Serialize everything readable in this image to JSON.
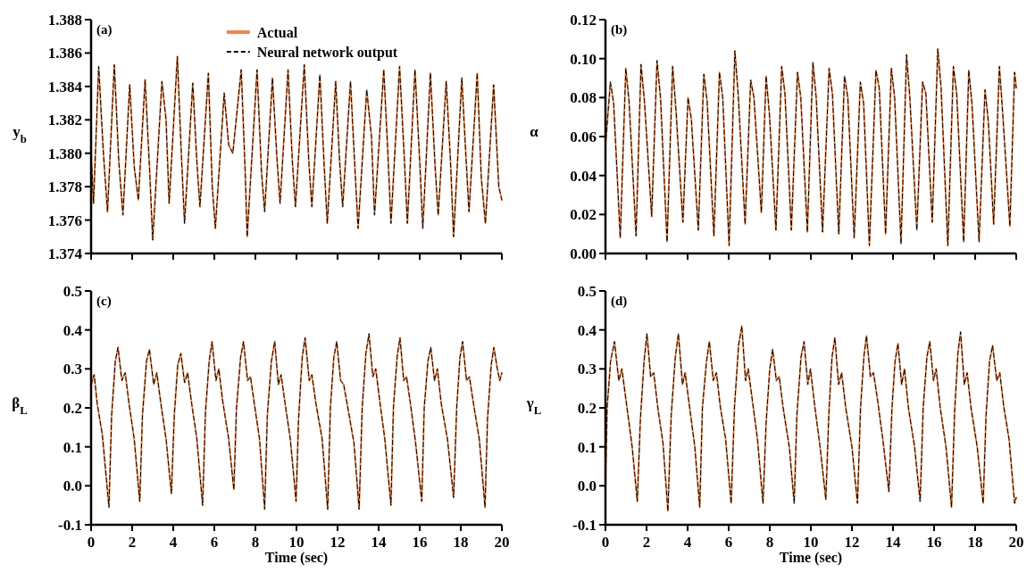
{
  "chart_data": [
    {
      "type": "line",
      "title": "(a)",
      "ylabel": "y$_{b}$",
      "legend": "top",
      "tick_labels": "y",
      "xlim": [
        0,
        20
      ],
      "xticks": [
        0,
        2,
        4,
        6,
        8,
        10,
        12,
        14,
        16,
        18,
        20
      ],
      "ylim": [
        1.374,
        1.388
      ],
      "yticks": [
        {
          "value": 1.374,
          "label": "1.374"
        },
        {
          "value": 1.376,
          "label": "1.376"
        },
        {
          "value": 1.378,
          "label": "1.378"
        },
        {
          "value": 1.38,
          "label": "1.380"
        },
        {
          "value": 1.382,
          "label": "1.382"
        },
        {
          "value": 1.384,
          "label": "1.384"
        },
        {
          "value": 1.386,
          "label": "1.386"
        },
        {
          "value": 1.388,
          "label": "1.388"
        }
      ],
      "x": [
        0,
        0.12,
        0.37,
        0.6,
        0.8,
        1.13,
        1.35,
        1.55,
        1.88,
        2.1,
        2.3,
        2.63,
        2.85,
        3.0,
        3.45,
        3.65,
        3.8,
        4.2,
        4.4,
        4.55,
        4.95,
        5.15,
        5.3,
        5.71,
        5.9,
        6.05,
        6.48,
        6.7,
        6.9,
        7.31,
        7.5,
        7.6,
        8.08,
        8.3,
        8.45,
        8.83,
        9.05,
        9.2,
        9.59,
        9.8,
        9.95,
        10.38,
        10.6,
        10.75,
        11.14,
        11.35,
        11.5,
        11.91,
        12.1,
        12.25,
        12.63,
        12.85,
        13.0,
        13.42,
        13.65,
        13.8,
        14.25,
        14.45,
        14.6,
        15.02,
        15.25,
        15.4,
        15.77,
        16.0,
        16.15,
        16.52,
        16.75,
        16.9,
        17.29,
        17.5,
        17.65,
        18.05,
        18.25,
        18.4,
        18.8,
        19.0,
        19.2,
        19.6,
        19.85,
        20
      ],
      "series": [
        {
          "name": "Actual",
          "color": "#f0874a",
          "line_style": "solid",
          "values": [
            1.38,
            1.377,
            1.3852,
            1.38,
            1.3765,
            1.3853,
            1.3795,
            1.3763,
            1.3841,
            1.3792,
            1.3772,
            1.3844,
            1.379,
            1.3748,
            1.3843,
            1.382,
            1.377,
            1.3858,
            1.3798,
            1.3758,
            1.3842,
            1.3795,
            1.3768,
            1.3848,
            1.378,
            1.3755,
            1.3836,
            1.3805,
            1.38,
            1.385,
            1.379,
            1.375,
            1.385,
            1.3788,
            1.3765,
            1.3845,
            1.3797,
            1.377,
            1.385,
            1.3795,
            1.3768,
            1.3853,
            1.3795,
            1.3768,
            1.3847,
            1.3792,
            1.3758,
            1.3843,
            1.3795,
            1.3768,
            1.3843,
            1.379,
            1.3755,
            1.3838,
            1.381,
            1.3763,
            1.385,
            1.38,
            1.3758,
            1.3852,
            1.3797,
            1.3758,
            1.385,
            1.3795,
            1.3755,
            1.3848,
            1.3792,
            1.3763,
            1.3843,
            1.3795,
            1.375,
            1.3845,
            1.3798,
            1.3765,
            1.3848,
            1.3785,
            1.3758,
            1.3841,
            1.378,
            1.3772
          ]
        },
        {
          "name": "Neural network output",
          "color": "#000000",
          "line_style": "dashed",
          "values": [
            1.38,
            1.377,
            1.3852,
            1.38,
            1.3765,
            1.3853,
            1.3795,
            1.3763,
            1.3841,
            1.3792,
            1.3772,
            1.3844,
            1.379,
            1.3748,
            1.3843,
            1.382,
            1.377,
            1.3858,
            1.3798,
            1.3758,
            1.3842,
            1.3795,
            1.3768,
            1.3848,
            1.378,
            1.3755,
            1.3836,
            1.3805,
            1.38,
            1.385,
            1.379,
            1.375,
            1.385,
            1.3788,
            1.3765,
            1.3845,
            1.3797,
            1.377,
            1.385,
            1.3795,
            1.3768,
            1.3853,
            1.3795,
            1.3768,
            1.3847,
            1.3792,
            1.3758,
            1.3843,
            1.3795,
            1.3768,
            1.3843,
            1.379,
            1.3755,
            1.3838,
            1.381,
            1.3763,
            1.385,
            1.38,
            1.3758,
            1.3852,
            1.3797,
            1.3758,
            1.385,
            1.3795,
            1.3755,
            1.3848,
            1.3792,
            1.3763,
            1.3843,
            1.3795,
            1.375,
            1.3845,
            1.3798,
            1.3765,
            1.3848,
            1.3785,
            1.3758,
            1.3841,
            1.378,
            1.3772
          ]
        }
      ]
    },
    {
      "type": "line",
      "title": "(b)",
      "ylabel": "α",
      "tick_labels": "y",
      "xlim": [
        0,
        20
      ],
      "xticks": [
        0,
        2,
        4,
        6,
        8,
        10,
        12,
        14,
        16,
        18,
        20
      ],
      "ylim": [
        0,
        0.12
      ],
      "yticks": [
        {
          "value": 0,
          "label": "0.00"
        },
        0.02,
        0.04,
        0.06,
        0.08,
        {
          "value": 0.1,
          "label": "0.10"
        },
        0.12
      ],
      "x": [
        0,
        0.24,
        0.4,
        0.72,
        0.99,
        1.15,
        1.49,
        1.73,
        1.9,
        2.25,
        2.51,
        2.68,
        3.0,
        3.27,
        3.43,
        3.77,
        4.02,
        4.18,
        4.52,
        4.79,
        4.95,
        5.28,
        5.55,
        5.71,
        6.02,
        6.3,
        6.46,
        6.8,
        7.07,
        7.23,
        7.59,
        7.82,
        7.98,
        8.3,
        8.58,
        8.74,
        9.05,
        9.35,
        9.51,
        9.83,
        10.1,
        10.26,
        10.57,
        10.89,
        11.05,
        11.36,
        11.64,
        11.8,
        12.11,
        12.41,
        12.57,
        12.85,
        13.17,
        13.33,
        13.64,
        13.92,
        14.08,
        14.39,
        14.66,
        14.82,
        15.16,
        15.44,
        15.6,
        15.91,
        16.18,
        16.34,
        16.67,
        16.94,
        17.1,
        17.44,
        17.69,
        17.85,
        18.19,
        18.48,
        18.64,
        18.9,
        19.18,
        19.34,
        19.69,
        19.92,
        20
      ],
      "series": [
        {
          "color": "#f0874a",
          "line_style": "solid",
          "values": [
            0.055,
            0.088,
            0.077,
            0.008,
            0.095,
            0.078,
            0.009,
            0.097,
            0.078,
            0.019,
            0.099,
            0.08,
            0.006,
            0.096,
            0.074,
            0.016,
            0.08,
            0.069,
            0.012,
            0.092,
            0.078,
            0.009,
            0.093,
            0.08,
            0.004,
            0.104,
            0.082,
            0.015,
            0.089,
            0.08,
            0.021,
            0.091,
            0.072,
            0.012,
            0.096,
            0.082,
            0.012,
            0.093,
            0.08,
            0.011,
            0.098,
            0.08,
            0.011,
            0.095,
            0.082,
            0.01,
            0.091,
            0.08,
            0.008,
            0.088,
            0.077,
            0.004,
            0.094,
            0.085,
            0.01,
            0.095,
            0.08,
            0.005,
            0.102,
            0.08,
            0.012,
            0.088,
            0.082,
            0.016,
            0.105,
            0.085,
            0.004,
            0.096,
            0.082,
            0.006,
            0.094,
            0.076,
            0.006,
            0.084,
            0.068,
            0.015,
            0.096,
            0.072,
            0.014,
            0.093,
            0.085
          ]
        },
        {
          "color": "#000000",
          "line_style": "dashed",
          "values": [
            0.055,
            0.088,
            0.077,
            0.008,
            0.095,
            0.078,
            0.009,
            0.097,
            0.078,
            0.019,
            0.099,
            0.08,
            0.006,
            0.096,
            0.074,
            0.016,
            0.08,
            0.069,
            0.012,
            0.092,
            0.078,
            0.009,
            0.093,
            0.08,
            0.004,
            0.104,
            0.082,
            0.015,
            0.089,
            0.08,
            0.021,
            0.091,
            0.072,
            0.012,
            0.096,
            0.082,
            0.012,
            0.093,
            0.08,
            0.011,
            0.098,
            0.08,
            0.011,
            0.095,
            0.082,
            0.01,
            0.091,
            0.08,
            0.008,
            0.088,
            0.077,
            0.004,
            0.094,
            0.085,
            0.01,
            0.095,
            0.08,
            0.005,
            0.102,
            0.08,
            0.012,
            0.088,
            0.082,
            0.016,
            0.105,
            0.085,
            0.004,
            0.096,
            0.082,
            0.006,
            0.094,
            0.076,
            0.006,
            0.084,
            0.068,
            0.015,
            0.096,
            0.072,
            0.014,
            0.093,
            0.085
          ]
        }
      ]
    },
    {
      "type": "line",
      "title": "(c)",
      "xlabel": "Time (sec)",
      "ylabel": "β$_{L}$",
      "xlim": [
        0,
        20
      ],
      "xticks": [
        0,
        2,
        4,
        6,
        8,
        10,
        12,
        14,
        16,
        18,
        20
      ],
      "ylim": [
        -0.1,
        0.5
      ],
      "yticks": [
        -0.1,
        {
          "value": 0,
          "label": "0.0"
        },
        0.1,
        0.2,
        0.3,
        0.4,
        0.5
      ],
      "x": [
        0,
        0.15,
        0.3,
        0.55,
        0.87,
        1.0,
        1.18,
        1.31,
        1.5,
        1.66,
        1.85,
        2.1,
        2.37,
        2.5,
        2.7,
        2.84,
        3.05,
        3.2,
        3.4,
        3.65,
        3.91,
        4.05,
        4.22,
        4.37,
        4.55,
        4.7,
        4.9,
        5.15,
        5.43,
        5.57,
        5.75,
        5.89,
        6.08,
        6.22,
        6.4,
        6.7,
        6.95,
        7.08,
        7.28,
        7.42,
        7.62,
        7.76,
        7.95,
        8.2,
        8.45,
        8.58,
        8.78,
        8.94,
        9.12,
        9.25,
        9.45,
        9.7,
        9.98,
        10.1,
        10.28,
        10.42,
        10.62,
        10.75,
        10.95,
        11.25,
        11.52,
        11.65,
        11.82,
        11.96,
        12.15,
        12.3,
        12.5,
        12.8,
        13.05,
        13.2,
        13.38,
        13.53,
        13.72,
        13.86,
        14.05,
        14.3,
        14.6,
        14.72,
        14.9,
        15.04,
        15.22,
        15.36,
        15.55,
        15.8,
        16.1,
        16.22,
        16.4,
        16.54,
        16.72,
        16.86,
        17.05,
        17.35,
        17.65,
        17.8,
        17.96,
        18.09,
        18.28,
        18.42,
        18.62,
        18.9,
        19.18,
        19.3,
        19.48,
        19.61,
        19.78,
        19.9,
        20
      ],
      "series": [
        {
          "color": "#f0874a",
          "line_style": "solid",
          "values": [
            0.26,
            0.285,
            0.21,
            0.13,
            -0.055,
            0.18,
            0.32,
            0.355,
            0.27,
            0.29,
            0.21,
            0.12,
            -0.04,
            0.18,
            0.32,
            0.35,
            0.26,
            0.29,
            0.21,
            0.12,
            -0.02,
            0.18,
            0.31,
            0.34,
            0.265,
            0.29,
            0.21,
            0.12,
            -0.05,
            0.19,
            0.32,
            0.37,
            0.27,
            0.3,
            0.22,
            0.12,
            -0.01,
            0.2,
            0.33,
            0.37,
            0.27,
            0.28,
            0.21,
            0.12,
            -0.06,
            0.18,
            0.32,
            0.37,
            0.26,
            0.285,
            0.21,
            0.12,
            -0.04,
            0.17,
            0.33,
            0.38,
            0.27,
            0.285,
            0.21,
            0.12,
            -0.06,
            0.2,
            0.33,
            0.37,
            0.27,
            0.26,
            0.2,
            0.11,
            -0.06,
            0.2,
            0.34,
            0.39,
            0.28,
            0.3,
            0.22,
            0.12,
            -0.05,
            0.2,
            0.33,
            0.38,
            0.27,
            0.28,
            0.21,
            0.11,
            -0.04,
            0.2,
            0.32,
            0.355,
            0.27,
            0.3,
            0.21,
            0.12,
            -0.03,
            0.2,
            0.33,
            0.37,
            0.27,
            0.28,
            0.21,
            0.12,
            -0.055,
            0.17,
            0.31,
            0.355,
            0.3,
            0.27,
            0.29
          ]
        },
        {
          "color": "#000000",
          "line_style": "dashed",
          "values": [
            0.26,
            0.285,
            0.21,
            0.13,
            -0.055,
            0.18,
            0.32,
            0.355,
            0.27,
            0.29,
            0.21,
            0.12,
            -0.04,
            0.18,
            0.32,
            0.35,
            0.26,
            0.29,
            0.21,
            0.12,
            -0.02,
            0.18,
            0.31,
            0.34,
            0.265,
            0.29,
            0.21,
            0.12,
            -0.05,
            0.19,
            0.32,
            0.37,
            0.27,
            0.3,
            0.22,
            0.12,
            -0.01,
            0.2,
            0.33,
            0.37,
            0.27,
            0.28,
            0.21,
            0.12,
            -0.06,
            0.18,
            0.32,
            0.37,
            0.26,
            0.285,
            0.21,
            0.12,
            -0.04,
            0.17,
            0.33,
            0.38,
            0.27,
            0.285,
            0.21,
            0.12,
            -0.06,
            0.2,
            0.33,
            0.37,
            0.27,
            0.26,
            0.2,
            0.11,
            -0.06,
            0.2,
            0.34,
            0.39,
            0.28,
            0.3,
            0.22,
            0.12,
            -0.05,
            0.2,
            0.33,
            0.38,
            0.27,
            0.28,
            0.21,
            0.11,
            -0.04,
            0.2,
            0.32,
            0.355,
            0.27,
            0.3,
            0.21,
            0.12,
            -0.03,
            0.2,
            0.33,
            0.37,
            0.27,
            0.28,
            0.21,
            0.12,
            -0.055,
            0.17,
            0.31,
            0.355,
            0.3,
            0.27,
            0.29
          ]
        }
      ]
    },
    {
      "type": "line",
      "title": "(d)",
      "xlabel": "Time (sec)",
      "ylabel": "γ$_{L}$",
      "xlim": [
        0,
        20
      ],
      "xticks": [
        0,
        2,
        4,
        6,
        8,
        10,
        12,
        14,
        16,
        18,
        20
      ],
      "ylim": [
        -0.1,
        0.5
      ],
      "yticks": [
        -0.1,
        {
          "value": 0,
          "label": "0.0"
        },
        0.1,
        0.2,
        0.3,
        0.4,
        0.5
      ],
      "x": [
        0,
        0.08,
        0.25,
        0.44,
        0.65,
        0.8,
        1.0,
        1.3,
        1.55,
        1.7,
        1.88,
        2.02,
        2.2,
        2.35,
        2.55,
        2.8,
        3.04,
        3.2,
        3.4,
        3.55,
        3.75,
        3.88,
        4.1,
        4.35,
        4.59,
        4.72,
        4.92,
        5.06,
        5.25,
        5.4,
        5.6,
        5.85,
        6.12,
        6.28,
        6.48,
        6.64,
        6.82,
        6.95,
        7.15,
        7.4,
        7.67,
        7.82,
        8.0,
        8.14,
        8.32,
        8.46,
        8.65,
        8.95,
        9.19,
        9.32,
        9.52,
        9.67,
        9.85,
        9.98,
        10.2,
        10.45,
        10.73,
        10.88,
        11.03,
        11.17,
        11.35,
        11.5,
        11.7,
        12.0,
        12.27,
        12.42,
        12.58,
        12.71,
        12.9,
        13.05,
        13.25,
        13.5,
        13.8,
        13.95,
        14.1,
        14.24,
        14.42,
        14.56,
        14.75,
        15.05,
        15.32,
        15.47,
        15.65,
        15.79,
        15.97,
        16.1,
        16.3,
        16.58,
        16.85,
        17.0,
        17.16,
        17.29,
        17.47,
        17.61,
        17.8,
        18.1,
        18.39,
        18.53,
        18.7,
        18.85,
        19.05,
        19.2,
        19.4,
        19.65,
        19.92,
        20
      ],
      "series": [
        {
          "color": "#f0874a",
          "line_style": "solid",
          "values": [
            0,
            0.2,
            0.32,
            0.37,
            0.27,
            0.3,
            0.22,
            0.1,
            -0.04,
            0.17,
            0.32,
            0.39,
            0.28,
            0.29,
            0.2,
            0.11,
            -0.065,
            0.18,
            0.33,
            0.39,
            0.26,
            0.29,
            0.2,
            0.1,
            -0.055,
            0.2,
            0.32,
            0.37,
            0.27,
            0.29,
            0.2,
            0.12,
            -0.045,
            0.2,
            0.36,
            0.41,
            0.27,
            0.3,
            0.22,
            0.12,
            -0.045,
            0.16,
            0.3,
            0.35,
            0.27,
            0.28,
            0.2,
            0.1,
            -0.045,
            0.18,
            0.33,
            0.37,
            0.26,
            0.3,
            0.2,
            0.1,
            -0.035,
            0.19,
            0.33,
            0.38,
            0.26,
            0.29,
            0.2,
            0.1,
            -0.045,
            0.2,
            0.33,
            0.385,
            0.28,
            0.29,
            0.22,
            0.12,
            -0.015,
            0.2,
            0.32,
            0.365,
            0.26,
            0.3,
            0.2,
            0.1,
            -0.04,
            0.2,
            0.33,
            0.37,
            0.27,
            0.3,
            0.2,
            0.1,
            -0.055,
            0.19,
            0.34,
            0.395,
            0.26,
            0.29,
            0.2,
            0.1,
            -0.045,
            0.18,
            0.32,
            0.36,
            0.27,
            0.29,
            0.2,
            0.12,
            -0.045,
            -0.03
          ]
        },
        {
          "color": "#000000",
          "line_style": "dashed",
          "values": [
            0,
            0.2,
            0.32,
            0.37,
            0.27,
            0.3,
            0.22,
            0.1,
            -0.04,
            0.17,
            0.32,
            0.39,
            0.28,
            0.29,
            0.2,
            0.11,
            -0.065,
            0.18,
            0.33,
            0.39,
            0.26,
            0.29,
            0.2,
            0.1,
            -0.055,
            0.2,
            0.32,
            0.37,
            0.27,
            0.29,
            0.2,
            0.12,
            -0.045,
            0.2,
            0.36,
            0.41,
            0.27,
            0.3,
            0.22,
            0.12,
            -0.045,
            0.16,
            0.3,
            0.35,
            0.27,
            0.28,
            0.2,
            0.1,
            -0.045,
            0.18,
            0.33,
            0.37,
            0.26,
            0.3,
            0.2,
            0.1,
            -0.035,
            0.19,
            0.33,
            0.38,
            0.26,
            0.29,
            0.2,
            0.1,
            -0.045,
            0.2,
            0.33,
            0.385,
            0.28,
            0.29,
            0.22,
            0.12,
            -0.015,
            0.2,
            0.32,
            0.365,
            0.26,
            0.3,
            0.2,
            0.1,
            -0.04,
            0.2,
            0.33,
            0.37,
            0.27,
            0.3,
            0.2,
            0.1,
            -0.055,
            0.19,
            0.34,
            0.395,
            0.26,
            0.29,
            0.2,
            0.1,
            -0.045,
            0.18,
            0.32,
            0.36,
            0.27,
            0.29,
            0.2,
            0.12,
            -0.045,
            -0.03
          ]
        }
      ]
    }
  ]
}
